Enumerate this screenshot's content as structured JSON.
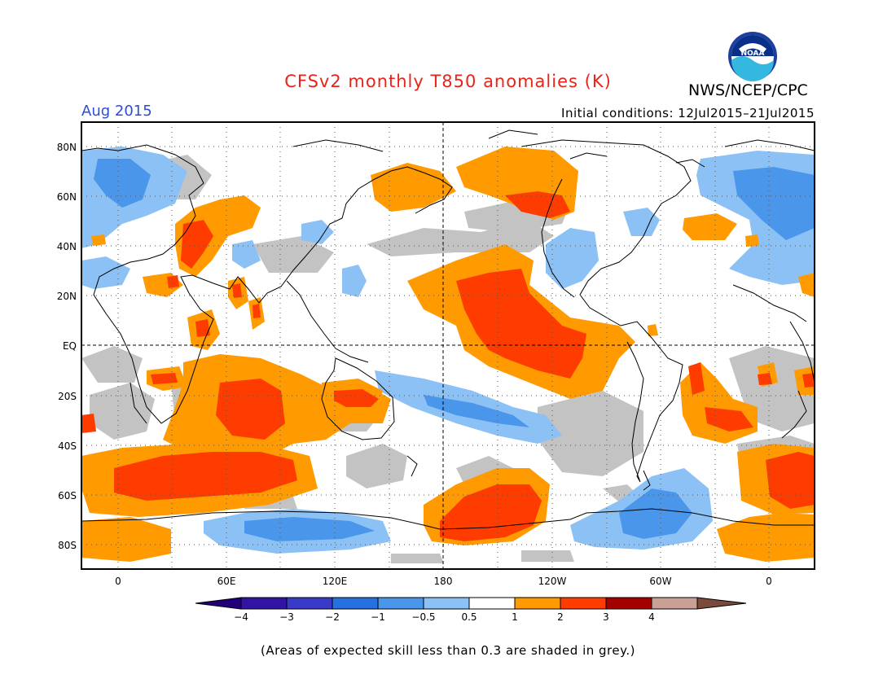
{
  "header": {
    "title": "CFSv2 monthly T850 anomalies (K)",
    "agency": "NWS/NCEP/CPC",
    "month": "Aug 2015",
    "initial_conditions": "Initial conditions: 12Jul2015–21Jul2015"
  },
  "logo": {
    "text": "NOAA"
  },
  "map": {
    "lat_labels": [
      "80N",
      "60N",
      "40N",
      "20N",
      "EQ",
      "20S",
      "40S",
      "60S",
      "80S"
    ],
    "lon_labels": [
      "0",
      "60E",
      "120E",
      "180",
      "120W",
      "60W",
      "0"
    ]
  },
  "legend": {
    "tick_labels": [
      "−4",
      "−3",
      "−2",
      "−1",
      "−0.5",
      "0.5",
      "1",
      "2",
      "3",
      "4"
    ],
    "colors": [
      "#3214a5",
      "#3a3ac9",
      "#2770e0",
      "#4a96ea",
      "#8cc1f5",
      "#ffffff",
      "#ff9a00",
      "#ff3c00",
      "#a50000",
      "#c8a096"
    ],
    "arrow_left_color": "#22007a",
    "arrow_right_color": "#7a4a3c"
  },
  "footnote": "(Areas of expected skill less than 0.3 are shaded in grey.)",
  "colors": {
    "title": "#e8231b",
    "month": "#2c4dd8",
    "skill_grey": "#c3c3c3"
  }
}
